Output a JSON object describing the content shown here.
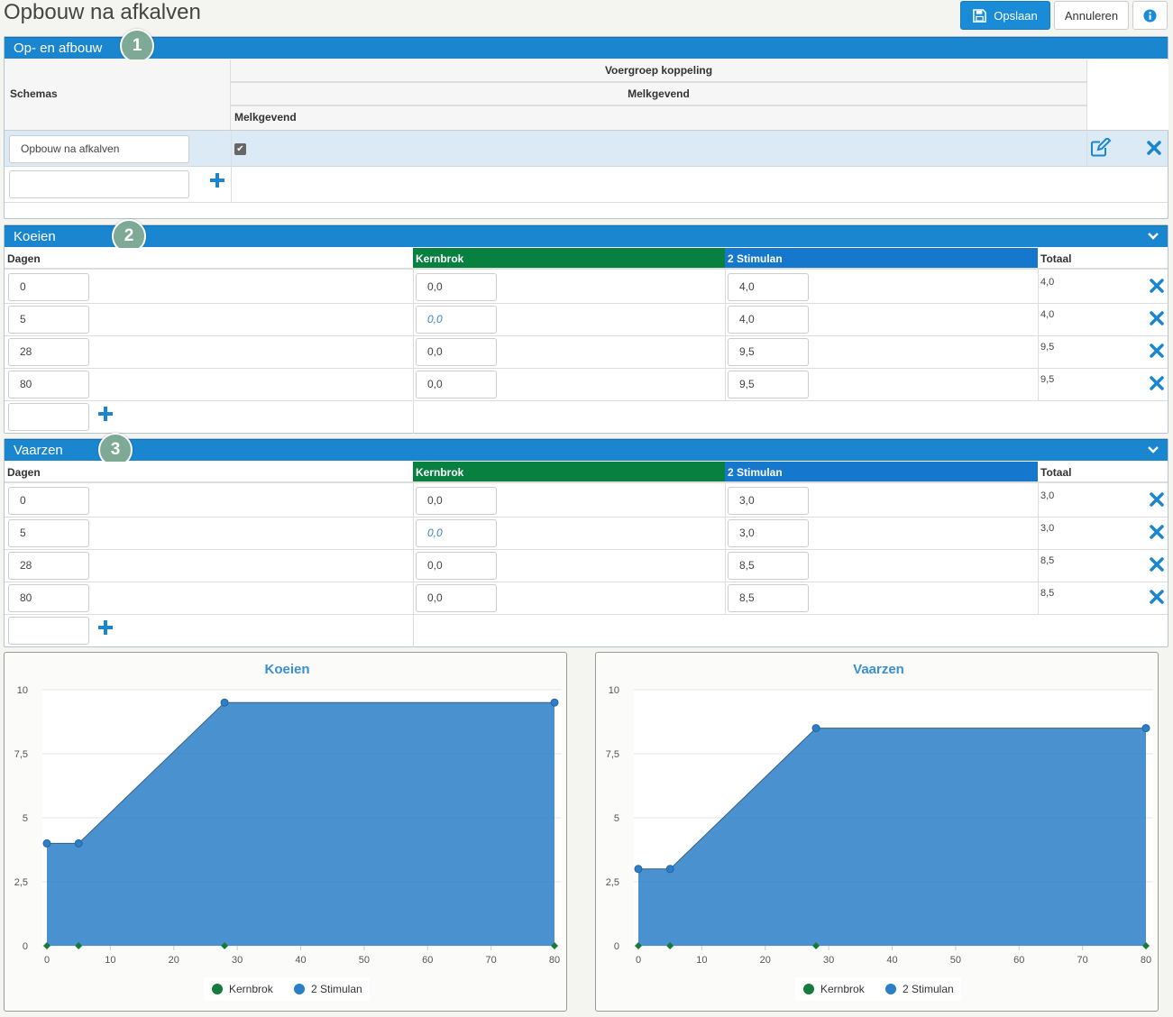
{
  "title": "Opbouw na afkalven",
  "toolbar": {
    "save": "Opslaan",
    "cancel": "Annuleren"
  },
  "section1": {
    "title": "Op- en afbouw",
    "badge": "1",
    "col_schemas": "Schemas",
    "col_group": "Voergroep koppeling",
    "col_sub": "Melkgevend",
    "col_sub2": "Melkgevend",
    "schema_name": "Opbouw na afkalven",
    "new_schema": ""
  },
  "cows": {
    "title": "Koeien",
    "badge": "2",
    "headers": [
      "Dagen",
      "Kernbrok",
      "2 Stimulan",
      "Totaal"
    ],
    "rows": [
      {
        "dagen": "0",
        "kern": "0,0",
        "stim": "4,0",
        "tot": "4,0"
      },
      {
        "dagen": "5",
        "kern": "0,0",
        "stim": "4,0",
        "tot": "4,0"
      },
      {
        "dagen": "28",
        "kern": "0,0",
        "stim": "9,5",
        "tot": "9,5"
      },
      {
        "dagen": "80",
        "kern": "0,0",
        "stim": "9,5",
        "tot": "9,5"
      }
    ]
  },
  "heifers": {
    "title": "Vaarzen",
    "badge": "3",
    "headers": [
      "Dagen",
      "Kernbrok",
      "2 Stimulan",
      "Totaal"
    ],
    "rows": [
      {
        "dagen": "0",
        "kern": "0,0",
        "stim": "3,0",
        "tot": "3,0"
      },
      {
        "dagen": "5",
        "kern": "0,0",
        "stim": "3,0",
        "tot": "3,0"
      },
      {
        "dagen": "28",
        "kern": "0,0",
        "stim": "8,5",
        "tot": "8,5"
      },
      {
        "dagen": "80",
        "kern": "0,0",
        "stim": "8,5",
        "tot": "8,5"
      }
    ]
  },
  "chart_data": [
    {
      "type": "area",
      "title": "Koeien",
      "x": [
        0,
        5,
        28,
        80
      ],
      "series": [
        {
          "name": "Kernbrok",
          "values": [
            0,
            0,
            0,
            0
          ],
          "color": "#157a3c"
        },
        {
          "name": "2 Stimulan",
          "values": [
            4,
            4,
            9.5,
            9.5
          ],
          "color": "#2a7fc7"
        }
      ],
      "xlim": [
        0,
        80
      ],
      "ylim": [
        0,
        10
      ],
      "xticks": [
        "0",
        "10",
        "20",
        "30",
        "40",
        "50",
        "60",
        "70",
        "80"
      ],
      "yticks": [
        "0",
        "2,5",
        "5",
        "7,5",
        "10"
      ],
      "legend": "bottom"
    },
    {
      "type": "area",
      "title": "Vaarzen",
      "x": [
        0,
        5,
        28,
        80
      ],
      "series": [
        {
          "name": "Kernbrok",
          "values": [
            0,
            0,
            0,
            0
          ],
          "color": "#157a3c"
        },
        {
          "name": "2 Stimulan",
          "values": [
            3,
            3,
            8.5,
            8.5
          ],
          "color": "#2a7fc7"
        }
      ],
      "xlim": [
        0,
        80
      ],
      "ylim": [
        0,
        10
      ],
      "xticks": [
        "0",
        "10",
        "20",
        "30",
        "40",
        "50",
        "60",
        "70",
        "80"
      ],
      "yticks": [
        "0",
        "2,5",
        "5",
        "7,5",
        "10"
      ],
      "legend": "bottom"
    }
  ]
}
